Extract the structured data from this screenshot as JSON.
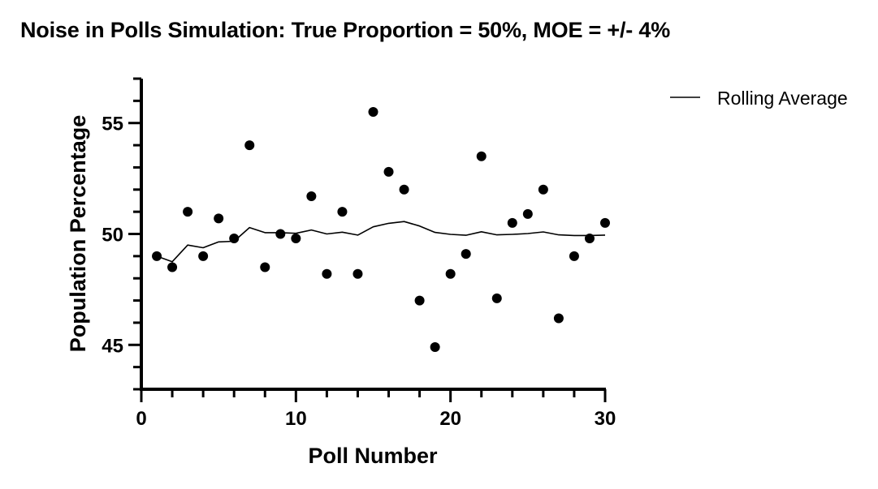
{
  "chart_data": {
    "type": "scatter",
    "title": "Noise in Polls Simulation: True Proportion = 50%, MOE = +/- 4%",
    "xlabel": "Poll Number",
    "ylabel": "Population Percentage",
    "xlim": [
      0,
      30
    ],
    "ylim": [
      43,
      57
    ],
    "x_ticks": [
      0,
      10,
      20,
      30
    ],
    "y_ticks": [
      45,
      50,
      55
    ],
    "grid": false,
    "legend_position": "top-right",
    "series": [
      {
        "type": "scatter",
        "x": [
          1,
          2,
          3,
          4,
          5,
          6,
          7,
          8,
          9,
          10,
          11,
          12,
          13,
          14,
          15,
          16,
          17,
          18,
          19,
          20,
          21,
          22,
          23,
          24,
          25,
          26,
          27,
          28,
          29,
          30
        ],
        "y": [
          49.0,
          48.5,
          51.0,
          49.0,
          50.7,
          49.8,
          54.0,
          48.5,
          50.0,
          49.8,
          51.7,
          48.2,
          51.0,
          48.2,
          55.5,
          52.8,
          52.0,
          47.0,
          44.9,
          48.2,
          49.1,
          53.5,
          47.1,
          50.5,
          50.9,
          52.0,
          46.2,
          49.0,
          49.8,
          50.5
        ]
      },
      {
        "name": "Rolling Average",
        "type": "line",
        "x": [
          1,
          2,
          3,
          4,
          5,
          6,
          7,
          8,
          9,
          10,
          11,
          12,
          13,
          14,
          15,
          16,
          17,
          18,
          19,
          20,
          21,
          22,
          23,
          24,
          25,
          26,
          27,
          28,
          29,
          30
        ],
        "y": [
          49.0,
          48.75,
          49.5,
          49.38,
          49.64,
          49.67,
          50.29,
          50.06,
          50.06,
          50.03,
          50.18,
          50.0,
          50.08,
          49.95,
          50.32,
          50.48,
          50.56,
          50.36,
          50.07,
          49.98,
          49.94,
          50.1,
          49.96,
          49.98,
          50.02,
          50.09,
          49.96,
          49.93,
          49.93,
          49.95
        ]
      }
    ]
  }
}
